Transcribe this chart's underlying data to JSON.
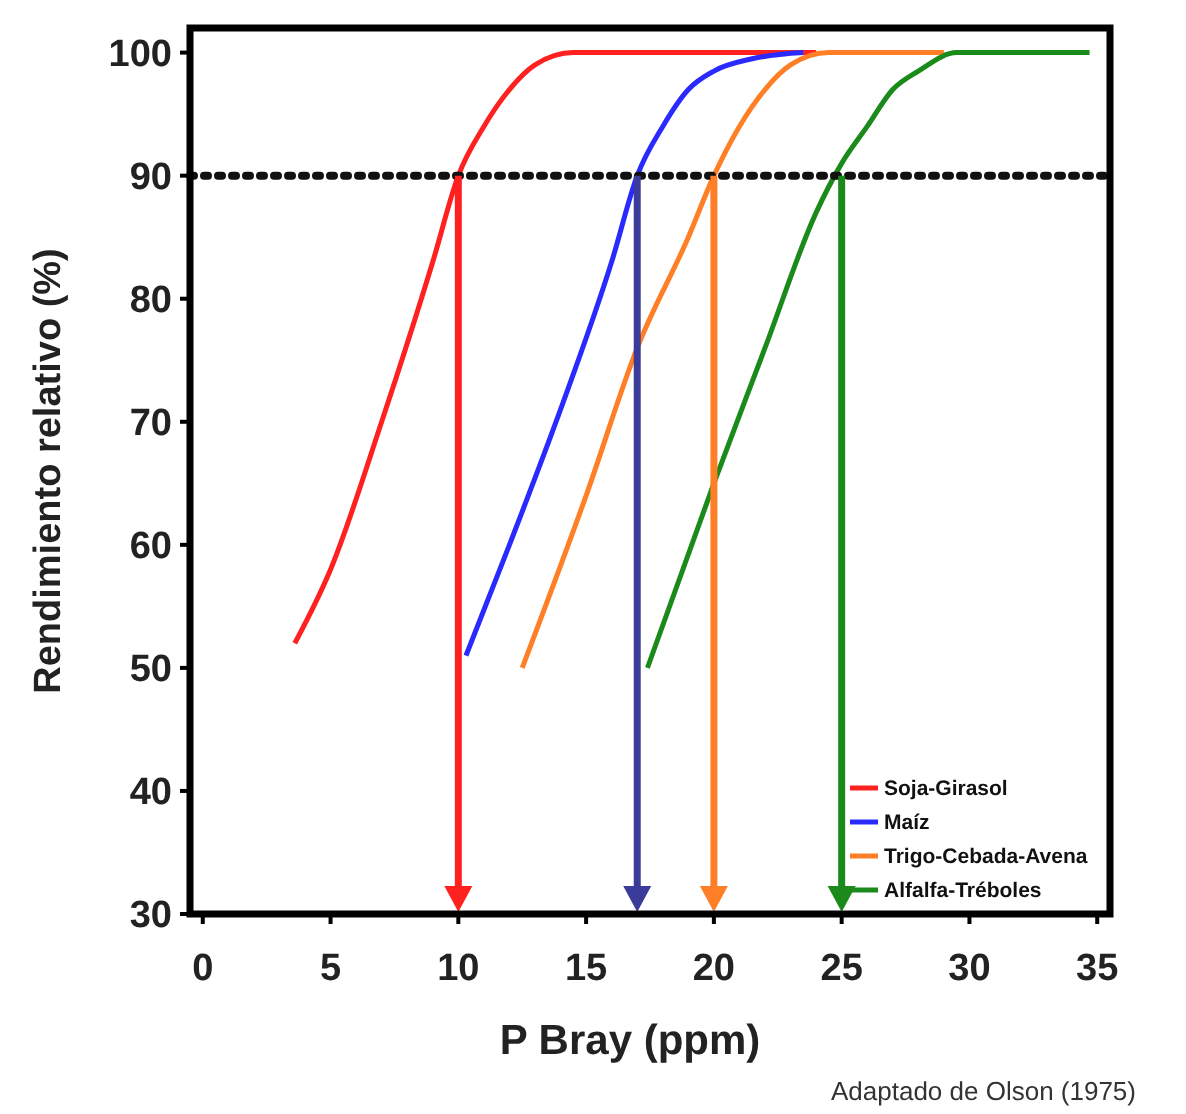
{
  "chart_data": {
    "type": "line",
    "xlabel": "P Bray (ppm)",
    "ylabel": "Rendimiento relativo (%)",
    "xlim": [
      -0.5,
      35.5
    ],
    "ylim": [
      30,
      102
    ],
    "xticks": [
      0,
      5,
      10,
      15,
      20,
      25,
      30,
      35
    ],
    "yticks": [
      30,
      40,
      50,
      60,
      70,
      80,
      90,
      100
    ],
    "grid": false,
    "legend": "bottom right",
    "line_style": "solid",
    "series": [
      {
        "name": "Soja-Girasol",
        "color": "#ff2020",
        "x": [
          3.6,
          5,
          7,
          9,
          10,
          11,
          12,
          13,
          14.5,
          24
        ],
        "values": [
          52,
          58,
          70,
          83,
          90,
          94,
          97,
          99,
          100,
          100
        ]
      },
      {
        "name": "Maíz",
        "color": "#2a2aff",
        "x": [
          10.3,
          12,
          14,
          16,
          17,
          18,
          19,
          20,
          21.5,
          23.5
        ],
        "values": [
          51,
          60,
          71,
          83,
          90,
          94,
          97,
          98.5,
          99.5,
          100
        ]
      },
      {
        "name": "Trigo-Cebada-Avena",
        "color": "#ff7f27",
        "x": [
          12.5,
          15,
          17,
          19,
          20,
          21,
          22,
          23,
          24.5,
          29
        ],
        "values": [
          50,
          64,
          76,
          85,
          90,
          94,
          97,
          99,
          100,
          100
        ]
      },
      {
        "name": "Alfalfa-Tréboles",
        "color": "#1a8a1a",
        "x": [
          17.4,
          20,
          22,
          24,
          25,
          26,
          27,
          28,
          29.5,
          34.7
        ],
        "values": [
          50,
          65,
          76,
          87,
          91,
          94,
          97,
          98.5,
          100,
          100
        ]
      }
    ],
    "ref_lines": [
      {
        "axis": "y",
        "value": 90,
        "color": "#111111",
        "line_style": "dotted"
      },
      {
        "axis": "x",
        "value": 10,
        "color": "#ff2020"
      },
      {
        "axis": "x",
        "value": 17,
        "color": "#3b3b9a"
      },
      {
        "axis": "x",
        "value": 20,
        "color": "#ff7f27"
      },
      {
        "axis": "x",
        "value": 25,
        "color": "#1a8a1a"
      }
    ],
    "annotations": [
      "Adaptado de Olson (1975)"
    ]
  }
}
